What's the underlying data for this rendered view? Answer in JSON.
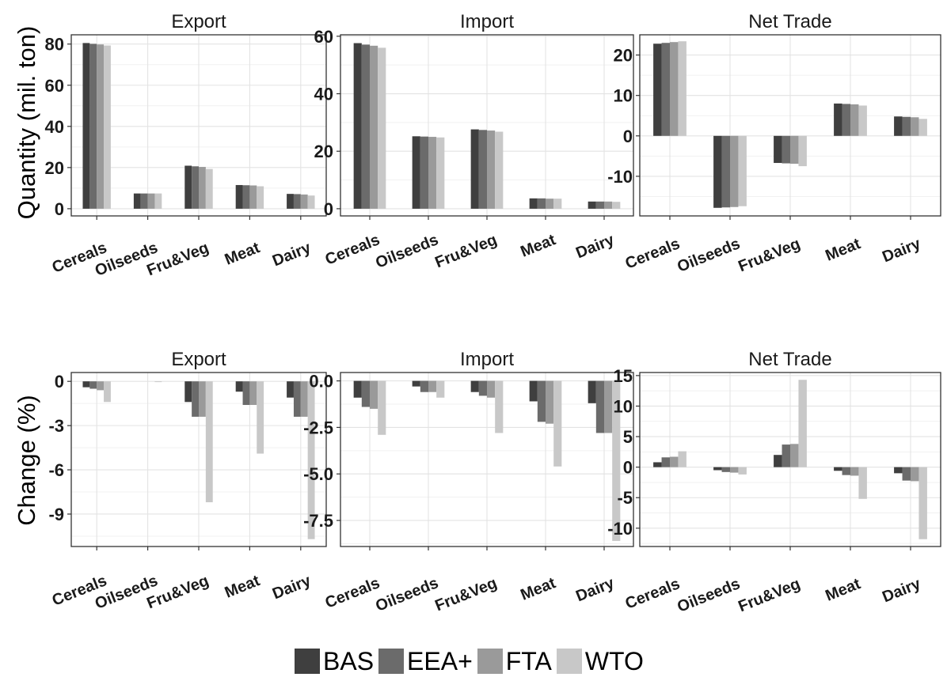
{
  "chart_data": {
    "type": "bar",
    "series_names": [
      "BAS",
      "EEA+",
      "FTA",
      "WTO"
    ],
    "series_colors": [
      "#3f3f3f",
      "#6b6b6b",
      "#9a9a9a",
      "#c8c8c8"
    ],
    "categories": [
      "Cereals",
      "Oilseeds",
      "Fru&Veg",
      "Meat",
      "Dairy"
    ],
    "rows": [
      {
        "ylabel": "Quantity (mil. ton)",
        "panels": [
          {
            "title": "Export",
            "ylim": [
              -3.5,
              84.5
            ],
            "yticks": [
              0,
              20,
              40,
              60,
              80
            ],
            "ytick_labels": [
              "0",
              "20",
              "40",
              "60",
              "80"
            ],
            "series": [
              {
                "name": "BAS",
                "values": [
                  80.5,
                  7.4,
                  20.9,
                  11.5,
                  7.2
                ]
              },
              {
                "name": "EEA+",
                "values": [
                  80.1,
                  7.4,
                  20.6,
                  11.4,
                  7.1
                ]
              },
              {
                "name": "FTA",
                "values": [
                  79.8,
                  7.4,
                  20.3,
                  11.3,
                  6.9
                ]
              },
              {
                "name": "WTO",
                "values": [
                  79.3,
                  7.4,
                  19.3,
                  10.9,
                  6.4
                ]
              }
            ]
          },
          {
            "title": "Import",
            "ylim": [
              -2.5,
              60.5
            ],
            "yticks": [
              0,
              20,
              40,
              60
            ],
            "ytick_labels": [
              "0",
              "20",
              "40",
              "60"
            ],
            "series": [
              {
                "name": "BAS",
                "values": [
                  57.6,
                  25.2,
                  27.6,
                  3.6,
                  2.5
                ]
              },
              {
                "name": "EEA+",
                "values": [
                  57.1,
                  25.1,
                  27.4,
                  3.6,
                  2.5
                ]
              },
              {
                "name": "FTA",
                "values": [
                  56.7,
                  25.0,
                  27.2,
                  3.5,
                  2.5
                ]
              },
              {
                "name": "WTO",
                "values": [
                  56.0,
                  24.8,
                  26.8,
                  3.5,
                  2.4
                ]
              }
            ]
          },
          {
            "title": "Net Trade",
            "ylim": [
              -19.8,
              25.0
            ],
            "yticks": [
              -10,
              0,
              10,
              20
            ],
            "ytick_labels": [
              "-10",
              "0",
              "10",
              "20"
            ],
            "series": [
              {
                "name": "BAS",
                "values": [
                  22.8,
                  -17.8,
                  -6.7,
                  8.0,
                  4.8
                ]
              },
              {
                "name": "EEA+",
                "values": [
                  23.0,
                  -17.7,
                  -6.8,
                  7.9,
                  4.7
                ]
              },
              {
                "name": "FTA",
                "values": [
                  23.2,
                  -17.6,
                  -6.9,
                  7.8,
                  4.6
                ]
              },
              {
                "name": "WTO",
                "values": [
                  23.4,
                  -17.4,
                  -7.5,
                  7.5,
                  4.2
                ]
              }
            ]
          }
        ]
      },
      {
        "ylabel": "Change (%)",
        "panels": [
          {
            "title": "Export",
            "ylim": [
              -11.2,
              0.6
            ],
            "yticks": [
              0,
              -3,
              -6,
              -9
            ],
            "ytick_labels": [
              "0",
              "-3",
              "-6",
              "-9"
            ],
            "series": [
              {
                "name": "BAS",
                "values": [
                  -0.4,
                  0,
                  -1.4,
                  -0.7,
                  -1.1
                ]
              },
              {
                "name": "EEA+",
                "values": [
                  -0.5,
                  0,
                  -2.4,
                  -1.6,
                  -2.4
                ]
              },
              {
                "name": "FTA",
                "values": [
                  -0.6,
                  0,
                  -2.4,
                  -1.6,
                  -2.4
                ]
              },
              {
                "name": "WTO",
                "values": [
                  -1.4,
                  -0.05,
                  -8.2,
                  -4.9,
                  -10.7
                ]
              }
            ]
          },
          {
            "title": "Import",
            "ylim": [
              -8.9,
              0.45
            ],
            "yticks": [
              0,
              -2.5,
              -5,
              -7.5
            ],
            "ytick_labels": [
              "0.0",
              "-2.5",
              "-5.0",
              "-7.5"
            ],
            "series": [
              {
                "name": "BAS",
                "values": [
                  -0.9,
                  -0.3,
                  -0.6,
                  -1.1,
                  -1.2
                ]
              },
              {
                "name": "EEA+",
                "values": [
                  -1.4,
                  -0.6,
                  -0.8,
                  -2.2,
                  -2.8
                ]
              },
              {
                "name": "FTA",
                "values": [
                  -1.5,
                  -0.6,
                  -0.9,
                  -2.3,
                  -2.8
                ]
              },
              {
                "name": "WTO",
                "values": [
                  -2.9,
                  -0.9,
                  -2.8,
                  -4.6,
                  -8.6
                ]
              }
            ]
          },
          {
            "title": "Net Trade",
            "ylim": [
              -13.0,
              15.5
            ],
            "yticks": [
              -10,
              -5,
              0,
              5,
              10,
              15
            ],
            "ytick_labels": [
              "-10",
              "-5",
              "0",
              "5",
              "10",
              "15"
            ],
            "series": [
              {
                "name": "BAS",
                "values": [
                  0.8,
                  -0.5,
                  2.0,
                  -0.6,
                  -1.0
                ]
              },
              {
                "name": "EEA+",
                "values": [
                  1.6,
                  -0.8,
                  3.7,
                  -1.3,
                  -2.2
                ]
              },
              {
                "name": "FTA",
                "values": [
                  1.7,
                  -0.9,
                  3.8,
                  -1.4,
                  -2.3
                ]
              },
              {
                "name": "WTO",
                "values": [
                  2.6,
                  -1.2,
                  14.3,
                  -5.2,
                  -11.8
                ]
              }
            ]
          }
        ]
      }
    ],
    "legend_position": "bottom",
    "grid": true
  }
}
